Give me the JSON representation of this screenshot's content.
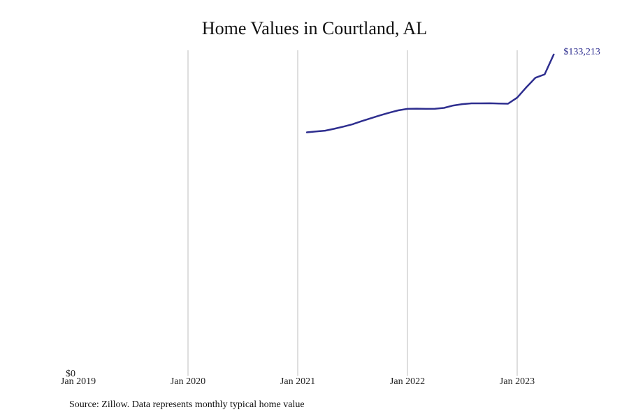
{
  "chart_data": {
    "type": "line",
    "title": "Home Values in Courtland, AL",
    "xlabel": "",
    "ylabel": "",
    "x_ticks": [
      "Jan 2019",
      "Jan 2020",
      "Jan 2021",
      "Jan 2022",
      "Jan 2023"
    ],
    "y_ticks": [
      "$0"
    ],
    "ylim": [
      0,
      133213
    ],
    "xlim": [
      "2019-01",
      "2023-08"
    ],
    "grid": "vertical",
    "line_color": "#2e2e8f",
    "series": [
      {
        "x": [
          "2021-02",
          "2021-03",
          "2021-04",
          "2021-05",
          "2021-06",
          "2021-07",
          "2021-08",
          "2021-09",
          "2021-10",
          "2021-11",
          "2021-12",
          "2022-01",
          "2022-02",
          "2022-03",
          "2022-04",
          "2022-05",
          "2022-06",
          "2022-07",
          "2022-08",
          "2022-09",
          "2022-10",
          "2022-11",
          "2022-12",
          "2023-01",
          "2023-02",
          "2023-03",
          "2023-04",
          "2023-05"
        ],
        "values": [
          100700,
          101100,
          101400,
          102200,
          103100,
          104100,
          105400,
          106600,
          107800,
          108900,
          109900,
          110500,
          110600,
          110500,
          110550,
          110900,
          111900,
          112500,
          112800,
          112800,
          112850,
          112750,
          112650,
          115200,
          119500,
          123500,
          124900,
          133213
        ],
        "end_label": "$133,213"
      }
    ],
    "source": "Source: Zillow. Data represents monthly typical home value"
  }
}
